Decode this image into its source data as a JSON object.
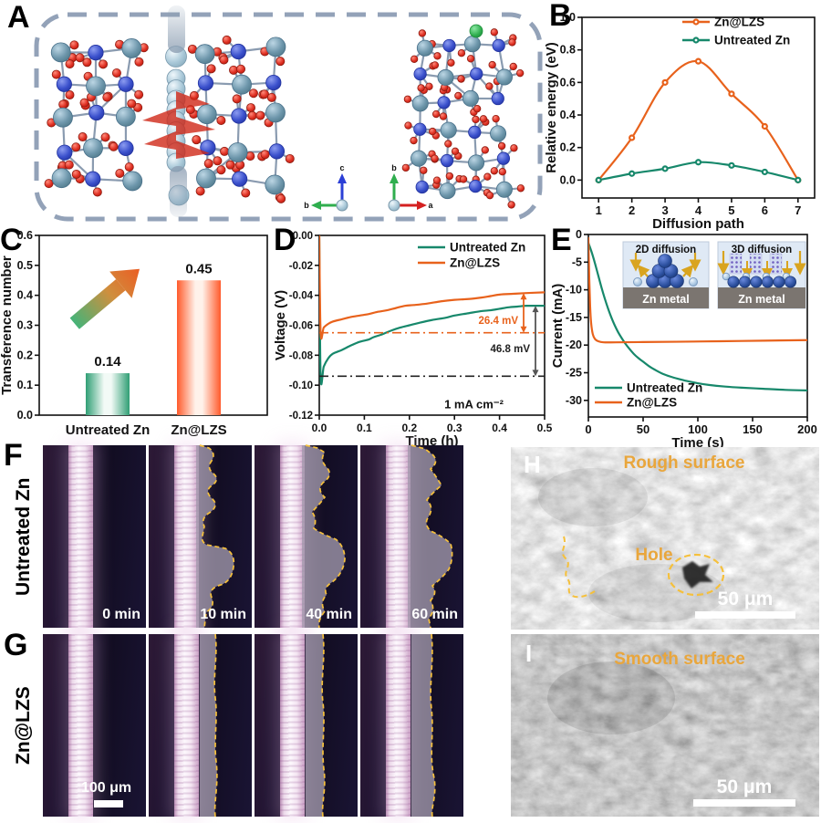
{
  "colors": {
    "orange": "#e8621c",
    "green": "#17886b",
    "gold_label": "#e9a63c",
    "gold_dash": "#f5c03c"
  },
  "panels": {
    "a": {
      "label": "A",
      "axes_left": {
        "up": "c",
        "side": "b"
      },
      "axes_right": {
        "up": "b",
        "side": "a"
      }
    },
    "b": {
      "label": "B"
    },
    "c": {
      "label": "C"
    },
    "d": {
      "label": "D"
    },
    "e": {
      "label": "E"
    },
    "f": {
      "label": "F",
      "side_label": "Untreated Zn",
      "time_labels": [
        "0 min",
        "10 min",
        "40 min",
        "60 min"
      ]
    },
    "g": {
      "label": "G",
      "side_label": "Zn@LZS",
      "scale_bar": "100 μm"
    },
    "h": {
      "label": "H",
      "title": "Rough surface",
      "annotation": "Hole",
      "scale_bar": "50 μm"
    },
    "i": {
      "label": "I",
      "title": "Smooth surface",
      "scale_bar": "50 μm"
    }
  },
  "chart_data": [
    {
      "panel": "B",
      "type": "line",
      "xlabel": "Diffusion path",
      "ylabel": "Relative energy (eV)",
      "xlim": [
        0.5,
        7.5
      ],
      "ylim": [
        -0.11,
        1.0
      ],
      "xticks": [
        1,
        2,
        3,
        4,
        5,
        6,
        7
      ],
      "yticks": [
        0,
        0.2,
        0.4,
        0.6,
        0.8,
        1
      ],
      "ytick_labels": [
        "0.0",
        "0.2",
        "0.4",
        "0.6",
        "0.8",
        "1.0"
      ],
      "legend_position": "top-right",
      "markers": true,
      "series": [
        {
          "name": "Zn@LZS",
          "color": "#e8621c",
          "x": [
            1,
            2,
            3,
            4,
            5,
            6,
            7
          ],
          "values": [
            0,
            0.26,
            0.6,
            0.73,
            0.53,
            0.33,
            0
          ]
        },
        {
          "name": "Untreated Zn",
          "color": "#17886b",
          "x": [
            1,
            2,
            3,
            4,
            5,
            6,
            7
          ],
          "values": [
            0,
            0.04,
            0.07,
            0.11,
            0.09,
            0.05,
            0
          ]
        }
      ]
    },
    {
      "panel": "C",
      "type": "bar",
      "ylabel": "Transference number",
      "xlim": [
        0,
        1
      ],
      "ylim": [
        0,
        0.6
      ],
      "yticks": [
        0,
        0.1,
        0.2,
        0.3,
        0.4,
        0.5,
        0.6
      ],
      "ytick_labels": [
        "0.0",
        "0.1",
        "0.2",
        "0.3",
        "0.4",
        "0.5",
        "0.6"
      ],
      "categories": [
        "Untreated Zn",
        "Zn@LZS"
      ],
      "bar_x": [
        0.3,
        0.7
      ],
      "values": [
        0.14,
        0.45
      ],
      "value_labels": [
        "0.14",
        "0.45"
      ],
      "bar_fills": [
        "barGreen",
        "barOrange"
      ]
    },
    {
      "panel": "D",
      "type": "line",
      "xlabel": "Time (h)",
      "ylabel": "Voltage (V)",
      "xlim": [
        0,
        0.5
      ],
      "ylim": [
        -0.12,
        0
      ],
      "xticks": [
        0,
        0.1,
        0.2,
        0.3,
        0.4,
        0.5
      ],
      "xtick_labels": [
        "0.0",
        "0.1",
        "0.2",
        "0.3",
        "0.4",
        "0.5"
      ],
      "yticks": [
        0,
        -0.02,
        -0.04,
        -0.06,
        -0.08,
        -0.1,
        -0.12
      ],
      "ytick_labels": [
        "0.00",
        "-0.02",
        "-0.04",
        "-0.06",
        "-0.08",
        "-0.10",
        "-0.12"
      ],
      "legend_position": "top-right",
      "annotations": {
        "overpotential_znlzs": "26.4 mV",
        "overpotential_untreated": "46.8 mV",
        "current_density": "1 mA cm⁻²",
        "ref_line_znlzs": -0.065,
        "ref_line_untreated": -0.094
      },
      "series": [
        {
          "name": "Untreated Zn",
          "color": "#17886b",
          "points": [
            [
              0,
              0
            ],
            [
              0.003,
              -0.094
            ],
            [
              0.01,
              -0.0875
            ],
            [
              0.02,
              -0.082
            ],
            [
              0.03,
              -0.079
            ],
            [
              0.05,
              -0.0765
            ],
            [
              0.07,
              -0.0735
            ],
            [
              0.09,
              -0.071
            ],
            [
              0.11,
              -0.0695
            ],
            [
              0.12,
              -0.068
            ],
            [
              0.14,
              -0.066
            ],
            [
              0.16,
              -0.0635
            ],
            [
              0.18,
              -0.0615
            ],
            [
              0.2,
              -0.06
            ],
            [
              0.22,
              -0.0585
            ],
            [
              0.25,
              -0.0565
            ],
            [
              0.28,
              -0.055
            ],
            [
              0.3,
              -0.0535
            ],
            [
              0.33,
              -0.052
            ],
            [
              0.36,
              -0.0505
            ],
            [
              0.38,
              -0.05
            ],
            [
              0.4,
              -0.049
            ],
            [
              0.42,
              -0.048
            ],
            [
              0.44,
              -0.0475
            ],
            [
              0.46,
              -0.047
            ],
            [
              0.5,
              -0.047
            ]
          ]
        },
        {
          "name": "Zn@LZS",
          "color": "#e8621c",
          "points": [
            [
              0,
              0
            ],
            [
              0.003,
              -0.065
            ],
            [
              0.01,
              -0.0615
            ],
            [
              0.02,
              -0.059
            ],
            [
              0.03,
              -0.0575
            ],
            [
              0.05,
              -0.056
            ],
            [
              0.07,
              -0.0545
            ],
            [
              0.09,
              -0.0535
            ],
            [
              0.11,
              -0.0525
            ],
            [
              0.13,
              -0.051
            ],
            [
              0.15,
              -0.05
            ],
            [
              0.17,
              -0.0485
            ],
            [
              0.19,
              -0.047
            ],
            [
              0.21,
              -0.0465
            ],
            [
              0.24,
              -0.0455
            ],
            [
              0.27,
              -0.044
            ],
            [
              0.3,
              -0.043
            ],
            [
              0.33,
              -0.0425
            ],
            [
              0.36,
              -0.0415
            ],
            [
              0.38,
              -0.0405
            ],
            [
              0.4,
              -0.0395
            ],
            [
              0.43,
              -0.039
            ],
            [
              0.46,
              -0.0385
            ],
            [
              0.5,
              -0.038
            ]
          ]
        }
      ]
    },
    {
      "panel": "E",
      "type": "line",
      "xlabel": "Time (s)",
      "ylabel": "Current (mA)",
      "xlim": [
        0,
        200
      ],
      "ylim": [
        -33,
        0
      ],
      "xticks": [
        0,
        50,
        100,
        150,
        200
      ],
      "yticks": [
        0,
        -5,
        -10,
        -15,
        -20,
        -25,
        -30
      ],
      "ytick_labels": [
        "0",
        "-5",
        "-10",
        "-15",
        "-20",
        "-25",
        "-30"
      ],
      "legend_position": "bottom-left",
      "inset": {
        "left_title": "2D diffusion",
        "right_title": "3D diffusion",
        "substrate": "Zn metal"
      },
      "series": [
        {
          "name": "Untreated Zn",
          "color": "#17886b",
          "points": [
            [
              0,
              -1.5
            ],
            [
              3,
              -3.2
            ],
            [
              6,
              -5.2
            ],
            [
              9,
              -7.4
            ],
            [
              12,
              -9.6
            ],
            [
              15,
              -11.6
            ],
            [
              18,
              -13.4
            ],
            [
              21,
              -15
            ],
            [
              24,
              -16.4
            ],
            [
              27,
              -17.6
            ],
            [
              30,
              -18.6
            ],
            [
              34,
              -19.8
            ],
            [
              38,
              -20.8
            ],
            [
              42,
              -21.7
            ],
            [
              46,
              -22.4
            ],
            [
              50,
              -23
            ],
            [
              56,
              -23.9
            ],
            [
              62,
              -24.6
            ],
            [
              68,
              -25.2
            ],
            [
              75,
              -25.7
            ],
            [
              82,
              -26.1
            ],
            [
              90,
              -26.5
            ],
            [
              100,
              -26.9
            ],
            [
              110,
              -27.2
            ],
            [
              125,
              -27.5
            ],
            [
              140,
              -27.7
            ],
            [
              160,
              -27.9
            ],
            [
              180,
              -28.1
            ],
            [
              200,
              -28.2
            ]
          ]
        },
        {
          "name": "Zn@LZS",
          "color": "#e8621c",
          "points": [
            [
              0,
              -0.5
            ],
            [
              0.8,
              -8
            ],
            [
              1.6,
              -13
            ],
            [
              2.5,
              -16
            ],
            [
              4,
              -18
            ],
            [
              6,
              -18.9
            ],
            [
              9,
              -19.3
            ],
            [
              14,
              -19.5
            ],
            [
              25,
              -19.5
            ],
            [
              50,
              -19.45
            ],
            [
              80,
              -19.4
            ],
            [
              120,
              -19.3
            ],
            [
              160,
              -19.2
            ],
            [
              200,
              -19.1
            ]
          ]
        }
      ]
    }
  ]
}
